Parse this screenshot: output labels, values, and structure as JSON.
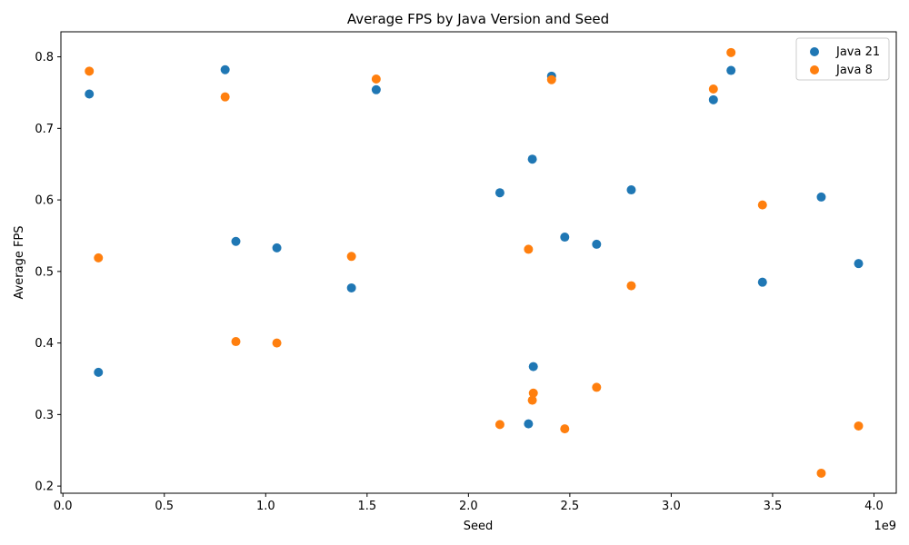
{
  "chart_data": {
    "type": "scatter",
    "title": "Average FPS by Java Version and Seed",
    "xlabel": "Seed",
    "ylabel": "Average FPS",
    "x_offset_label": "1e9",
    "xlim": [
      -0.01,
      4.11
    ],
    "ylim": [
      0.19,
      0.835
    ],
    "x_ticks": [
      {
        "value": 0.0,
        "label": "0.0"
      },
      {
        "value": 0.5,
        "label": "0.5"
      },
      {
        "value": 1.0,
        "label": "1.0"
      },
      {
        "value": 1.5,
        "label": "1.5"
      },
      {
        "value": 2.0,
        "label": "2.0"
      },
      {
        "value": 2.5,
        "label": "2.5"
      },
      {
        "value": 3.0,
        "label": "3.0"
      },
      {
        "value": 3.5,
        "label": "3.5"
      },
      {
        "value": 4.0,
        "label": "4.0"
      }
    ],
    "y_ticks": [
      {
        "value": 0.2,
        "label": "0.2"
      },
      {
        "value": 0.3,
        "label": "0.3"
      },
      {
        "value": 0.4,
        "label": "0.4"
      },
      {
        "value": 0.5,
        "label": "0.5"
      },
      {
        "value": 0.6,
        "label": "0.6"
      },
      {
        "value": 0.7,
        "label": "0.7"
      },
      {
        "value": 0.8,
        "label": "0.8"
      }
    ],
    "grid": false,
    "legend_position": "top-right",
    "series": [
      {
        "name": "Java 21",
        "color": "#1f77b4",
        "points": [
          {
            "x": 0.13,
            "y": 0.748
          },
          {
            "x": 0.175,
            "y": 0.359
          },
          {
            "x": 0.8,
            "y": 0.782
          },
          {
            "x": 0.853,
            "y": 0.542
          },
          {
            "x": 1.055,
            "y": 0.533
          },
          {
            "x": 1.423,
            "y": 0.477
          },
          {
            "x": 1.545,
            "y": 0.754
          },
          {
            "x": 2.155,
            "y": 0.61
          },
          {
            "x": 2.296,
            "y": 0.287
          },
          {
            "x": 2.315,
            "y": 0.657
          },
          {
            "x": 2.32,
            "y": 0.367
          },
          {
            "x": 2.41,
            "y": 0.773
          },
          {
            "x": 2.475,
            "y": 0.548
          },
          {
            "x": 2.632,
            "y": 0.538
          },
          {
            "x": 2.803,
            "y": 0.614
          },
          {
            "x": 3.208,
            "y": 0.74
          },
          {
            "x": 3.295,
            "y": 0.781
          },
          {
            "x": 3.45,
            "y": 0.485
          },
          {
            "x": 3.74,
            "y": 0.604
          },
          {
            "x": 3.924,
            "y": 0.511
          }
        ]
      },
      {
        "name": "Java 8",
        "color": "#ff7f0e",
        "points": [
          {
            "x": 0.13,
            "y": 0.78
          },
          {
            "x": 0.175,
            "y": 0.519
          },
          {
            "x": 0.8,
            "y": 0.744
          },
          {
            "x": 0.853,
            "y": 0.402
          },
          {
            "x": 1.055,
            "y": 0.4
          },
          {
            "x": 1.423,
            "y": 0.521
          },
          {
            "x": 1.545,
            "y": 0.769
          },
          {
            "x": 2.155,
            "y": 0.286
          },
          {
            "x": 2.296,
            "y": 0.531
          },
          {
            "x": 2.315,
            "y": 0.32
          },
          {
            "x": 2.32,
            "y": 0.33
          },
          {
            "x": 2.41,
            "y": 0.768
          },
          {
            "x": 2.475,
            "y": 0.28
          },
          {
            "x": 2.632,
            "y": 0.338
          },
          {
            "x": 2.803,
            "y": 0.48
          },
          {
            "x": 3.208,
            "y": 0.755
          },
          {
            "x": 3.295,
            "y": 0.806
          },
          {
            "x": 3.45,
            "y": 0.593
          },
          {
            "x": 3.74,
            "y": 0.218
          },
          {
            "x": 3.924,
            "y": 0.284
          }
        ]
      }
    ]
  }
}
